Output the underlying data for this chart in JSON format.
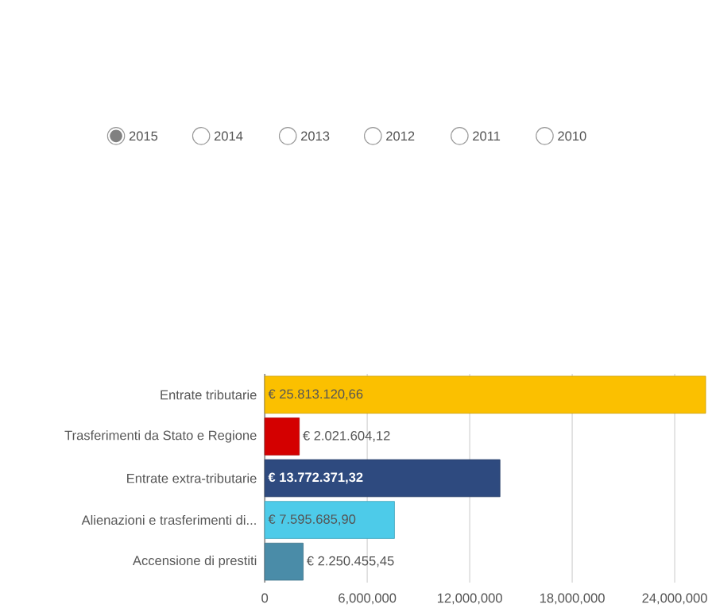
{
  "chart_data": {
    "type": "bar",
    "orientation": "horizontal",
    "categories": [
      "Entrate tributarie",
      "Trasferimenti da Stato e Regione",
      "Entrate extra-tributarie",
      "Alienazioni e trasferimenti di...",
      "Accensione di prestiti"
    ],
    "values": [
      25813120.66,
      2021604.12,
      13772371.32,
      7595685.9,
      2250455.45
    ],
    "colors": [
      "#fbc000",
      "#d40000",
      "#2e4a7f",
      "#4dcbe9",
      "#4a8ca8"
    ],
    "value_labels": [
      "€ 25.813.120,66",
      "€ 2.021.604,12",
      "€ 13.772.371,32",
      "€ 7.595.685,90",
      "€ 2.250.455,45"
    ],
    "xlim": [
      0,
      26000000
    ],
    "xticks": [
      0,
      {
        "value": 6000000,
        "label": "6,000,000"
      },
      {
        "value": 12000000,
        "label": "12,000,000"
      },
      {
        "value": 18000000,
        "label": "18,000,000"
      },
      {
        "value": 24000000,
        "label": "24,000,000"
      }
    ],
    "grid": "x",
    "annotations": [
      "2015",
      "2014",
      "2013",
      "2012",
      "2011",
      "2010"
    ]
  }
}
